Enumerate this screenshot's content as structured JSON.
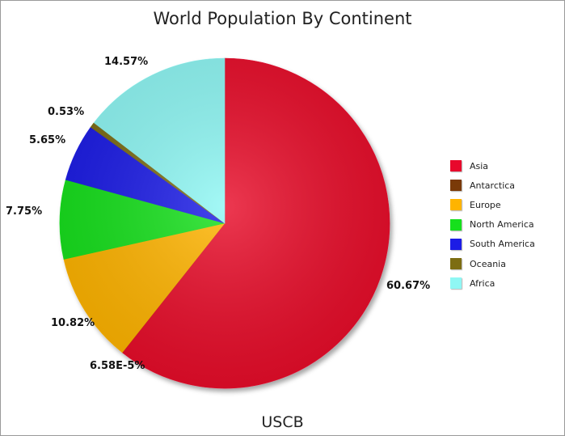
{
  "chart_data": {
    "type": "pie",
    "title": "World Population By Continent",
    "xlabel": "USCB",
    "start_angle": "12 o'clock",
    "direction": "clockwise",
    "legend_position": "right",
    "slices": [
      {
        "name": "Asia",
        "value": 60.67,
        "label": "60.67%",
        "color": "#e8082c"
      },
      {
        "name": "Antarctica",
        "value": 6.58e-05,
        "label": "6.58E-5%",
        "color": "#7a3a08"
      },
      {
        "name": "Europe",
        "value": 10.82,
        "label": "10.82%",
        "color": "#ffb400"
      },
      {
        "name": "North America",
        "value": 7.75,
        "label": "7.75%",
        "color": "#16e01c"
      },
      {
        "name": "South America",
        "value": 5.65,
        "label": "5.65%",
        "color": "#1c1ce6"
      },
      {
        "name": "Oceania",
        "value": 0.53,
        "label": "0.53%",
        "color": "#7d6d12"
      },
      {
        "name": "Africa",
        "value": 14.57,
        "label": "14.57%",
        "color": "#8ff7f4"
      }
    ]
  }
}
